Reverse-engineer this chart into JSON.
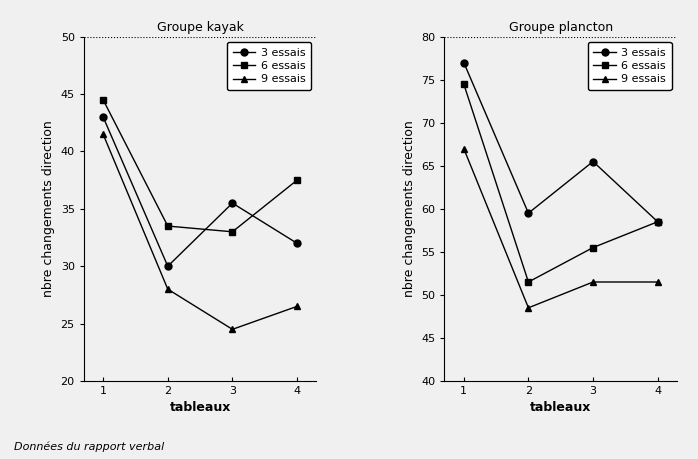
{
  "kayak": {
    "title": "Groupe kayak",
    "series": {
      "3 essais": [
        43,
        30,
        35.5,
        32
      ],
      "6 essais": [
        44.5,
        33.5,
        33,
        37.5
      ],
      "9 essais": [
        41.5,
        28,
        24.5,
        26.5
      ]
    },
    "ylim": [
      20,
      50
    ],
    "yticks": [
      20,
      25,
      30,
      35,
      40,
      45,
      50
    ],
    "xticks": [
      1,
      2,
      3,
      4
    ]
  },
  "plancton": {
    "title": "Groupe plancton",
    "series": {
      "3 essais": [
        77,
        59.5,
        65.5,
        58.5
      ],
      "6 essais": [
        74.5,
        51.5,
        55.5,
        58.5
      ],
      "9 essais": [
        67,
        48.5,
        51.5,
        51.5
      ]
    },
    "ylim": [
      40,
      80
    ],
    "yticks": [
      40,
      45,
      50,
      55,
      60,
      65,
      70,
      75,
      80
    ],
    "xticks": [
      1,
      2,
      3,
      4
    ]
  },
  "xlabel": "tableaux",
  "ylabel": "nbre changements direction",
  "markers": {
    "3 essais": "o",
    "6 essais": "s",
    "9 essais": "^"
  },
  "line_color": "#000000",
  "background_color": "#f0f0f0",
  "title_fontsize": 9,
  "label_fontsize": 9,
  "tick_fontsize": 8,
  "legend_fontsize": 8,
  "markersize": 5,
  "linewidth": 1.0,
  "caption": "Données du rapport verbal"
}
